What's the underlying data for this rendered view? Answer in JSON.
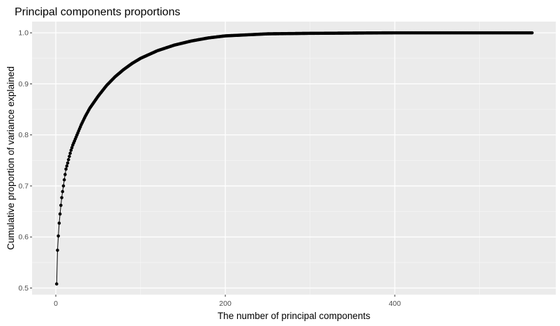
{
  "chart_data": {
    "type": "line",
    "title": "Principal components proportions",
    "xlabel": "The number of principal components",
    "ylabel": "Cumulative proportion of variance explained",
    "xlim": [
      -28,
      590
    ],
    "ylim": [
      0.487,
      1.022
    ],
    "x_ticks": [
      0,
      200,
      400
    ],
    "x_tick_labels": [
      "0",
      "200",
      "400"
    ],
    "x_minor_ticks": [
      100,
      300,
      500
    ],
    "y_ticks": [
      0.5,
      0.6,
      0.7,
      0.8,
      0.9,
      1.0
    ],
    "y_tick_labels": [
      "0.5",
      "0.6",
      "0.7",
      "0.8",
      "0.9",
      "1.0"
    ],
    "grid": true,
    "n_components": 562,
    "series": [
      {
        "x": [
          1,
          2,
          3,
          4,
          5,
          6,
          7,
          8,
          9,
          10,
          12,
          14,
          16,
          18,
          20,
          25,
          30,
          35,
          40,
          50,
          60,
          70,
          80,
          90,
          100,
          120,
          140,
          160,
          180,
          200,
          250,
          300,
          400,
          500,
          562
        ],
        "values": [
          0.508,
          0.574,
          0.602,
          0.627,
          0.645,
          0.662,
          0.677,
          0.689,
          0.7,
          0.712,
          0.733,
          0.745,
          0.758,
          0.77,
          0.78,
          0.8,
          0.82,
          0.837,
          0.852,
          0.876,
          0.897,
          0.914,
          0.928,
          0.94,
          0.95,
          0.965,
          0.976,
          0.984,
          0.99,
          0.994,
          0.998,
          0.999,
          1.0,
          1.0,
          1.0
        ]
      }
    ],
    "colors": {
      "panel": "#ebebeb",
      "grid_major": "#ffffff",
      "series": "#000000",
      "axis_text": "#4d4d4d"
    }
  }
}
